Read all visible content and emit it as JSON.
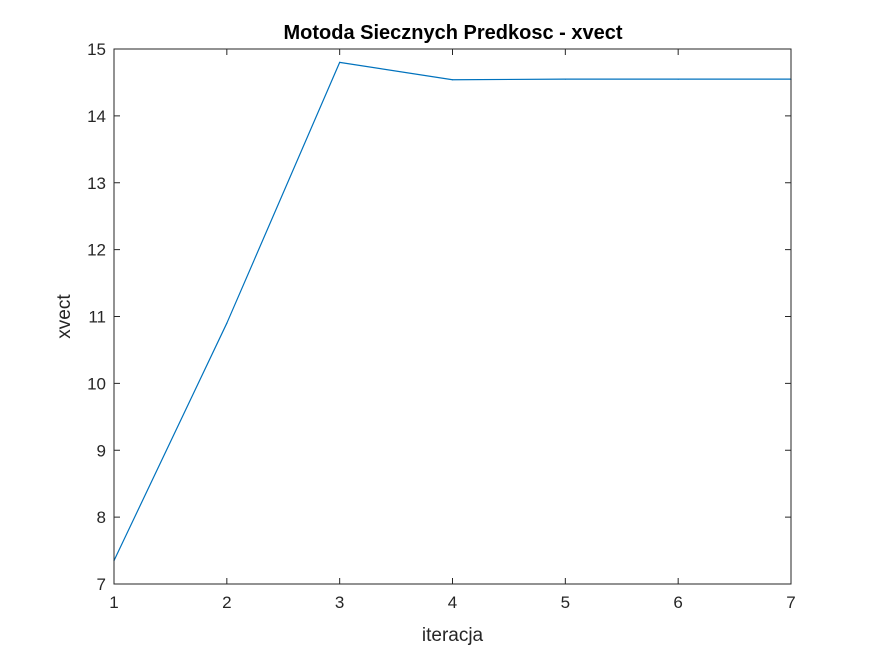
{
  "chart_data": {
    "type": "line",
    "title": "Motoda Siecznych Predkosc - xvect",
    "xlabel": "iteracja",
    "ylabel": "xvect",
    "xlim": [
      1,
      7
    ],
    "ylim": [
      7,
      15
    ],
    "xticks": [
      "1",
      "2",
      "3",
      "4",
      "5",
      "6",
      "7"
    ],
    "yticks": [
      "7",
      "8",
      "9",
      "10",
      "11",
      "12",
      "13",
      "14",
      "15"
    ],
    "series": [
      {
        "color": "#0072bd",
        "x": [
          1,
          2,
          3,
          4,
          5,
          6,
          7
        ],
        "y": [
          7.35,
          10.9,
          14.8,
          14.54,
          14.55,
          14.55,
          14.55
        ]
      }
    ],
    "grid": false,
    "box": true
  }
}
